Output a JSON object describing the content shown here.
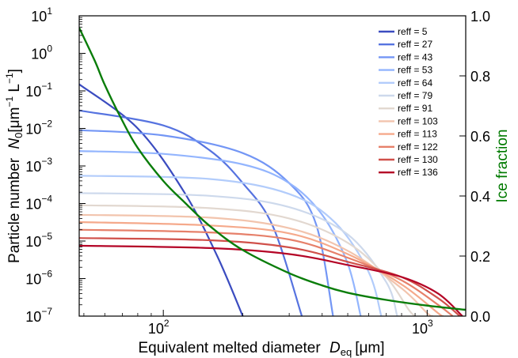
{
  "chart_data": {
    "type": "line",
    "xlabel": "Equivalent melted diameter",
    "xlabel_symbol": "D",
    "xlabel_subscript": "eq",
    "xlabel_unit": "[μm]",
    "ylabel": "Particle number",
    "ylabel_symbol": "N",
    "ylabel_subscript": "0",
    "ylabel_unit_parts": [
      "[μm",
      "−1",
      " L",
      "−1",
      "]"
    ],
    "y2label": "Ice fraction",
    "y2label_color": "#007a00",
    "x_scale": "log",
    "y_scale": "log",
    "xlim": [
      48,
      1400
    ],
    "ylim": [
      1e-07,
      10
    ],
    "y2lim": [
      0.0,
      1.0
    ],
    "x_ticks": [
      {
        "value": 100,
        "base": "10",
        "exp": "2"
      },
      {
        "value": 1000,
        "base": "10",
        "exp": "3"
      }
    ],
    "y_ticks": [
      {
        "value": 10,
        "base": "10",
        "exp": "1"
      },
      {
        "value": 1,
        "base": "10",
        "exp": "0"
      },
      {
        "value": 0.1,
        "base": "10",
        "exp": "−1"
      },
      {
        "value": 0.01,
        "base": "10",
        "exp": "−2"
      },
      {
        "value": 0.001,
        "base": "10",
        "exp": "−3"
      },
      {
        "value": 0.0001,
        "base": "10",
        "exp": "−4"
      },
      {
        "value": 1e-05,
        "base": "10",
        "exp": "−5"
      },
      {
        "value": 1e-06,
        "base": "10",
        "exp": "−6"
      },
      {
        "value": 1e-07,
        "base": "10",
        "exp": "−7"
      }
    ],
    "y2_ticks": [
      "0.0",
      "0.2",
      "0.4",
      "0.6",
      "0.8",
      "1.0"
    ],
    "legend_position": "top-right",
    "grid": false,
    "series": [
      {
        "name": "reff = 5",
        "color": "#3b4cc0",
        "x": [
          48,
          80,
          120,
          160,
          200
        ],
        "y": [
          0.15,
          0.01,
          0.0002,
          4e-06,
          1e-07
        ]
      },
      {
        "name": "reff = 27",
        "color": "#5673e0",
        "x": [
          48,
          100,
          150,
          200,
          260,
          335
        ],
        "y": [
          0.03,
          0.012,
          0.0026,
          0.00035,
          2.5e-05,
          1e-07
        ]
      },
      {
        "name": "reff = 43",
        "color": "#7396f5",
        "x": [
          48,
          100,
          200,
          300,
          380,
          440
        ],
        "y": [
          0.009,
          0.0065,
          0.0022,
          0.00035,
          2.7e-05,
          1e-07
        ]
      },
      {
        "name": "reff = 53",
        "color": "#93b5fe",
        "x": [
          48,
          100,
          200,
          300,
          400,
          500,
          560
        ],
        "y": [
          0.0025,
          0.0021,
          0.0011,
          0.00035,
          5e-05,
          2.5e-06,
          1e-07
        ]
      },
      {
        "name": "reff = 64",
        "color": "#b2ccfb",
        "x": [
          48,
          150,
          300,
          450,
          600,
          670
        ],
        "y": [
          0.00055,
          0.00045,
          0.00018,
          3e-05,
          1.5e-06,
          1e-07
        ]
      },
      {
        "name": "reff = 79",
        "color": "#cdd9ec",
        "x": [
          48,
          150,
          300,
          500,
          700,
          770
        ],
        "y": [
          0.00019,
          0.00016,
          8e-05,
          1.5e-05,
          8e-07,
          1e-07
        ]
      },
      {
        "name": "reff = 91",
        "color": "#e2d8d0",
        "x": [
          48,
          150,
          300,
          500,
          700,
          850,
          900
        ],
        "y": [
          9e-05,
          7.5e-05,
          4e-05,
          9e-06,
          1.1e-06,
          1.5e-07,
          1e-07
        ]
      },
      {
        "name": "reff = 103",
        "color": "#f2c4ad",
        "x": [
          48,
          150,
          300,
          500,
          800,
          1000,
          1050
        ],
        "y": [
          5e-05,
          4.2e-05,
          2.2e-05,
          5.5e-06,
          5.5e-07,
          1.2e-07,
          1e-07
        ]
      },
      {
        "name": "reff = 113",
        "color": "#f5a98b",
        "x": [
          48,
          150,
          300,
          500,
          800,
          1100,
          1150
        ],
        "y": [
          3.2e-05,
          2.6e-05,
          1.6e-05,
          4.5e-06,
          7e-07,
          1.2e-07,
          1e-07
        ]
      },
      {
        "name": "reff = 122",
        "color": "#e6806a",
        "x": [
          48,
          150,
          300,
          500,
          800,
          1100,
          1250
        ],
        "y": [
          2e-05,
          1.7e-05,
          1.1e-05,
          3.6e-06,
          9e-07,
          2e-07,
          1e-07
        ]
      },
      {
        "name": "reff = 130",
        "color": "#d0504a",
        "x": [
          48,
          150,
          300,
          500,
          800,
          1100,
          1330
        ],
        "y": [
          1.2e-05,
          1.05e-05,
          6.8e-06,
          2.8e-06,
          1.1e-06,
          3e-07,
          1e-07
        ]
      },
      {
        "name": "reff = 136",
        "color": "#b40426",
        "x": [
          48,
          150,
          300,
          500,
          800,
          1100,
          1360
        ],
        "y": [
          7.5e-06,
          6.5e-06,
          4.5e-06,
          2.3e-06,
          1.1e-06,
          4e-07,
          1e-07
        ]
      }
    ],
    "ice_fraction": {
      "color": "#0a7d0a",
      "axis": "right",
      "x": [
        48,
        55,
        60,
        70,
        80,
        100,
        120,
        150,
        200,
        300,
        400,
        500,
        700,
        1000,
        1400
      ],
      "y": [
        0.96,
        0.85,
        0.77,
        0.65,
        0.56,
        0.45,
        0.38,
        0.3,
        0.22,
        0.143,
        0.102,
        0.078,
        0.054,
        0.035,
        0.021
      ]
    }
  }
}
